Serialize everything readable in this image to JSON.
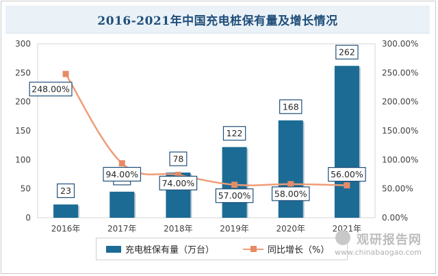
{
  "title": "2016-2021年中国充电桩保有量及增长情况",
  "legend": {
    "bar_label": "充电桩保有量（万台）",
    "line_label": "同比增长（%）"
  },
  "watermark": {
    "cn": "观研报告网",
    "url": "www.chinabaogao.com"
  },
  "colors": {
    "bar": "#1c6b95",
    "line": "#ef9c76",
    "marker": "#e58b67",
    "title_bg": "#eaf1f7",
    "title_text": "#1f4e79"
  },
  "chart_data": {
    "type": "bar",
    "title": "2016-2021年中国充电桩保有量及增长情况",
    "categories": [
      "2016年",
      "2017年",
      "2018年",
      "2019年",
      "2020年",
      "2021年"
    ],
    "series": [
      {
        "name": "充电桩保有量（万台）",
        "type": "bar",
        "axis": "left",
        "values": [
          23,
          45,
          78,
          122,
          168,
          262
        ],
        "labels": [
          "23",
          "45",
          "78",
          "122",
          "168",
          "262"
        ]
      },
      {
        "name": "同比增长（%）",
        "type": "line",
        "axis": "right",
        "values": [
          248,
          94,
          74,
          57,
          58,
          56
        ],
        "labels": [
          "248.00%",
          "94.00%",
          "74.00%",
          "57.00%",
          "58.00%",
          "56.00%"
        ]
      }
    ],
    "y_left": {
      "min": 0,
      "max": 300,
      "ticks": [
        "0",
        "50",
        "100",
        "150",
        "200",
        "250",
        "300"
      ]
    },
    "y_right": {
      "min": 0,
      "max": 300,
      "ticks": [
        "0.00%",
        "50.00%",
        "100.00%",
        "150.00%",
        "200.00%",
        "250.00%",
        "300.00%"
      ]
    },
    "grid": false,
    "legend_position": "bottom"
  }
}
